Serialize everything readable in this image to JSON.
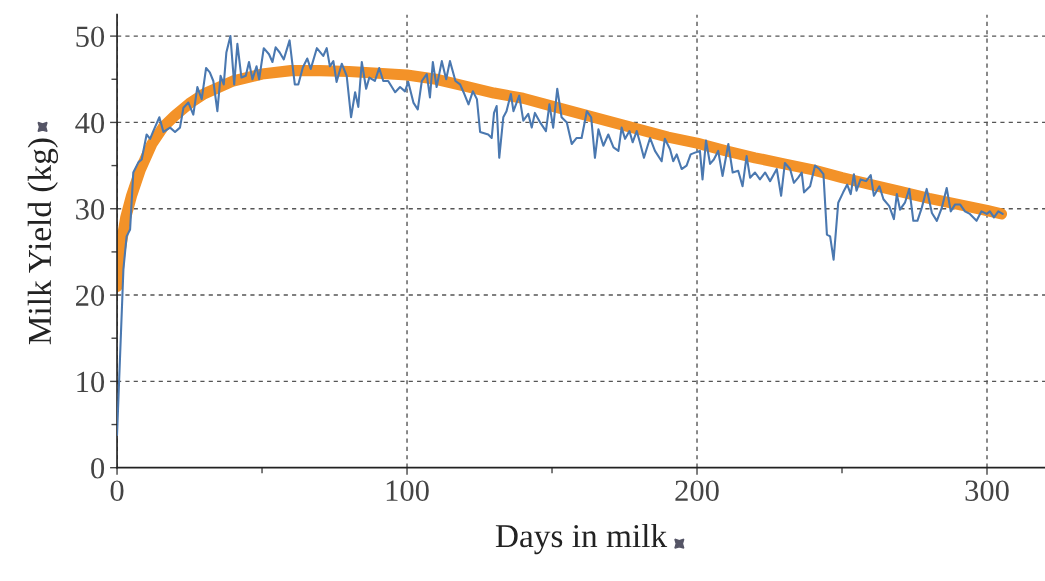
{
  "chart_data": {
    "type": "line",
    "xlabel": "Days in milk",
    "ylabel": "Milk Yield (kg)",
    "xlim": [
      0,
      320
    ],
    "ylim": [
      0,
      52.5
    ],
    "xticks": [
      0,
      {
        "value": 50,
        "label": null
      },
      100,
      {
        "value": 150,
        "label": null
      },
      200,
      {
        "value": 250,
        "label": null
      },
      300
    ],
    "yticks": [
      0,
      {
        "value": 5,
        "label": null
      },
      10,
      {
        "value": 15,
        "label": null
      },
      20,
      {
        "value": 25,
        "label": null
      },
      30,
      {
        "value": 35,
        "label": null
      },
      40,
      {
        "value": 45,
        "label": null
      },
      50
    ],
    "grid": true,
    "legend": false,
    "series": [
      {
        "color": "#4a78b0",
        "x": [
          0,
          2.2,
          3.3,
          4.5,
          5.6,
          7.4,
          8.5,
          10.2,
          11.4,
          12.5,
          14.6,
          16,
          18.3,
          20,
          21.7,
          22.9,
          24.6,
          26.3,
          27.7,
          29.2,
          30.7,
          32,
          33.2,
          34.6,
          35.7,
          36.8,
          37.7,
          39.1,
          40.4,
          41.5,
          42.9,
          44.4,
          45.5,
          46.7,
          48.1,
          49,
          50.6,
          52.4,
          53.6,
          54.7,
          56.1,
          57.5,
          59.5,
          61.3,
          62.5,
          64.1,
          65.6,
          66.8,
          68.9,
          71.1,
          72.3,
          73.4,
          74.6,
          75.7,
          77.5,
          79.2,
          80.7,
          82.1,
          83.2,
          84.4,
          85.9,
          87,
          88.9,
          90.4,
          91.8,
          93.5,
          95.9,
          97.6,
          99.3,
          100.4,
          102.2,
          103.7,
          105.1,
          106.8,
          107.9,
          108.9,
          110.2,
          112,
          113.5,
          114.8,
          116.7,
          118.3,
          119.5,
          121.2,
          122.7,
          124.1,
          125.2,
          128,
          129.2,
          130,
          130.9,
          131.8,
          133.2,
          134.3,
          135.8,
          136.7,
          138.7,
          140.1,
          141.8,
          143,
          144.1,
          145.9,
          147.9,
          149.1,
          150.4,
          151.8,
          153.3,
          155.1,
          156.8,
          158.5,
          160.2,
          162,
          163.5,
          164.8,
          166,
          167.7,
          169.4,
          171.2,
          172.9,
          174,
          175.2,
          176.7,
          177.8,
          179.2,
          180.3,
          181.7,
          183.8,
          185.5,
          187.8,
          188.9,
          190.7,
          191.8,
          193,
          194.7,
          196.4,
          197.8,
          199.3,
          201,
          201.9,
          203.1,
          204.5,
          205.8,
          207.3,
          208.8,
          210.8,
          212.3,
          214.2,
          215.7,
          217.1,
          218.3,
          220,
          221.7,
          223.5,
          225.2,
          227.5,
          229,
          230.3,
          232.1,
          233.4,
          234.9,
          236.1,
          236.9,
          239,
          240.7,
          242.2,
          243.6,
          244.8,
          245.9,
          247.1,
          248.7,
          250.4,
          251.8,
          253,
          254.1,
          255,
          256.4,
          258.3,
          259.9,
          261,
          262.9,
          264.3,
          266.3,
          267.9,
          268.9,
          270,
          271.7,
          273.2,
          274.6,
          276,
          277.5,
          279.2,
          281,
          282.7,
          284.4,
          286.1,
          287.5,
          289,
          290.7,
          292.4,
          294.1,
          296.4,
          298.1,
          299.9,
          301,
          302.4,
          303.9,
          305.4
        ],
        "values": [
          3.8,
          23.0,
          26.8,
          27.6,
          34.2,
          35.4,
          35.7,
          38.6,
          38.1,
          39.0,
          40.6,
          38.9,
          39.4,
          38.9,
          39.4,
          41.7,
          42.3,
          40.9,
          44.1,
          42.7,
          46.3,
          45.8,
          44.8,
          41.3,
          45.4,
          44.4,
          48.1,
          50.0,
          44.4,
          49.1,
          45.2,
          45.4,
          47.0,
          45.0,
          46.5,
          45.0,
          48.6,
          47.9,
          47.0,
          48.7,
          48.1,
          47.3,
          49.5,
          44.4,
          44.4,
          46.4,
          47.4,
          46.2,
          48.6,
          47.7,
          48.6,
          46.5,
          47.1,
          44.7,
          46.8,
          45.4,
          40.6,
          43.5,
          41.8,
          47.0,
          43.9,
          45.2,
          44.8,
          46.3,
          44.8,
          44.8,
          43.5,
          44.1,
          43.6,
          44.7,
          42.3,
          41.5,
          44.8,
          45.6,
          42.9,
          47.0,
          44.1,
          47.1,
          45.0,
          47.1,
          44.8,
          44.4,
          43.5,
          42.1,
          43.6,
          42.7,
          38.9,
          38.6,
          38.2,
          41.1,
          41.9,
          35.9,
          40.6,
          41.3,
          43.3,
          41.3,
          43.1,
          40.2,
          41.0,
          39.4,
          41.1,
          40.0,
          39.0,
          42.1,
          39.4,
          43.9,
          40.6,
          40.0,
          37.5,
          38.2,
          38.2,
          41.3,
          40.6,
          35.9,
          39.2,
          37.3,
          38.6,
          37.1,
          36.7,
          39.4,
          38.1,
          39.0,
          37.7,
          39.0,
          37.7,
          35.9,
          38.2,
          36.7,
          35.5,
          38.1,
          36.9,
          35.5,
          36.3,
          34.6,
          35.0,
          36.3,
          36.5,
          36.7,
          33.4,
          37.9,
          35.2,
          35.7,
          36.7,
          33.8,
          37.5,
          34.2,
          34.4,
          32.6,
          36.1,
          33.6,
          34.2,
          33.4,
          34.2,
          33.2,
          34.6,
          31.5,
          35.3,
          34.6,
          33.0,
          33.6,
          34.2,
          31.9,
          32.6,
          35.0,
          34.6,
          34.0,
          27.0,
          26.8,
          24.1,
          30.7,
          31.9,
          32.8,
          31.7,
          34.0,
          32.1,
          33.4,
          33.2,
          33.9,
          31.5,
          32.6,
          31.1,
          30.3,
          28.8,
          31.7,
          29.9,
          30.7,
          32.3,
          28.6,
          28.6,
          30.1,
          32.3,
          29.5,
          28.6,
          30.1,
          32.4,
          29.7,
          30.5,
          30.5,
          29.7,
          29.4,
          28.6,
          29.7,
          29.4,
          29.7,
          29.0,
          29.7,
          29.4
        ]
      },
      {
        "color": "#f39228",
        "x": [
          0,
          1,
          3,
          5,
          8,
          12,
          16,
          20,
          25,
          30,
          40,
          50,
          60,
          70,
          80,
          90,
          100,
          110,
          120,
          130,
          140,
          150,
          160,
          170,
          180,
          190,
          200,
          210,
          220,
          230,
          240,
          250,
          260,
          270,
          280,
          290,
          300,
          305
        ],
        "values": [
          21,
          25,
          29,
          31.5,
          34.5,
          37.5,
          39.5,
          40.8,
          42.2,
          43.3,
          44.8,
          45.6,
          46,
          46,
          45.9,
          45.7,
          45.5,
          45,
          44.2,
          43.4,
          42.8,
          41.9,
          41,
          40.1,
          39.2,
          38.3,
          37.6,
          36.7,
          35.9,
          35.2,
          34.5,
          33.6,
          32.8,
          32,
          31.2,
          30.5,
          29.8,
          29.4
        ]
      }
    ]
  }
}
